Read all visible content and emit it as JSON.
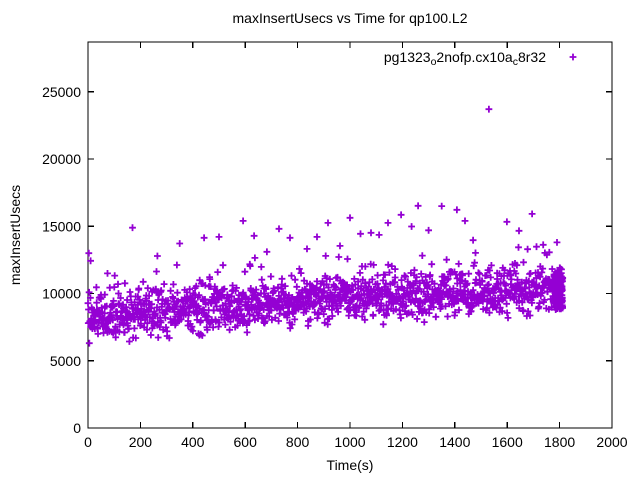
{
  "window": {
    "background_color": "#ffffff",
    "text_color": "#000000"
  },
  "chart_data": {
    "type": "scatter",
    "title": "maxInsertUsecs vs Time for qp100.L2",
    "xlabel": "Time(s)",
    "ylabel": "maxInsertUsecs",
    "xlim": [
      0,
      2000
    ],
    "ylim": [
      0,
      28700
    ],
    "x_ticks": [
      0,
      200,
      400,
      600,
      800,
      1000,
      1200,
      1400,
      1600,
      1800,
      2000
    ],
    "y_ticks": [
      0,
      5000,
      10000,
      15000,
      20000,
      25000
    ],
    "grid": false,
    "ticks_mirrored_inward": true,
    "legend": {
      "position": "top-right-inside",
      "label_plain": "pg1323_o2nofp.cx10a_c8r32",
      "segments": [
        {
          "text": "pg1323",
          "sub": false
        },
        {
          "text": "o",
          "sub": true
        },
        {
          "text": "2nofp.cx10a",
          "sub": false
        },
        {
          "text": "c",
          "sub": true
        },
        {
          "text": "8r32",
          "sub": false
        }
      ],
      "marker": "plus",
      "marker_color": "#9400d3"
    },
    "series": [
      {
        "name": "pg1323_o2nofp.cx10a_c8r32",
        "marker": "plus",
        "color": "#9400d3",
        "description": "maxInsertUsecs per time bucket; dense band rising from ~8000 usecs at t=0 to ~10400 usecs at t=1810, lowest values ~6050 near start, band half-width ~1800",
        "band_model": {
          "count": 1450,
          "t_min": 0,
          "t_max": 1810,
          "center_start": 8000,
          "center_end": 10380,
          "curve_exponent": 0.7,
          "spread": 850,
          "clip_low": 2000,
          "clip_high": 2300,
          "tail_probability": 0.04,
          "tail_base": 1500,
          "tail_span": 1900,
          "seed": 1323
        },
        "end_cluster": {
          "t_min": 1778,
          "t_max": 1812,
          "count": 110,
          "v_min": 8800,
          "v_span": 2700,
          "extra_probability": 0.12,
          "extra_span": 900
        },
        "outlier_points": [
          [
            3,
            13000
          ],
          [
            10,
            12430
          ],
          [
            170,
            14890
          ],
          [
            265,
            12790
          ],
          [
            350,
            13720
          ],
          [
            443,
            14140
          ],
          [
            500,
            14210
          ],
          [
            592,
            15400
          ],
          [
            634,
            14290
          ],
          [
            637,
            12650
          ],
          [
            683,
            13100
          ],
          [
            729,
            14810
          ],
          [
            771,
            14140
          ],
          [
            836,
            13320
          ],
          [
            874,
            14210
          ],
          [
            916,
            15250
          ],
          [
            962,
            13540
          ],
          [
            1000,
            15630
          ],
          [
            1040,
            14440
          ],
          [
            1080,
            14510
          ],
          [
            1111,
            14360
          ],
          [
            1145,
            15250
          ],
          [
            1195,
            15850
          ],
          [
            1235,
            14980
          ],
          [
            1260,
            16520
          ],
          [
            1300,
            14700
          ],
          [
            1350,
            16500
          ],
          [
            1408,
            16220
          ],
          [
            1439,
            15400
          ],
          [
            1470,
            13960
          ],
          [
            1530,
            23700
          ],
          [
            1599,
            15330
          ],
          [
            1645,
            14660
          ],
          [
            1695,
            15920
          ],
          [
            1712,
            13480
          ],
          [
            1744,
            13020
          ],
          [
            1790,
            13800
          ]
        ],
        "max_point": [
          1530,
          23700
        ]
      }
    ]
  }
}
